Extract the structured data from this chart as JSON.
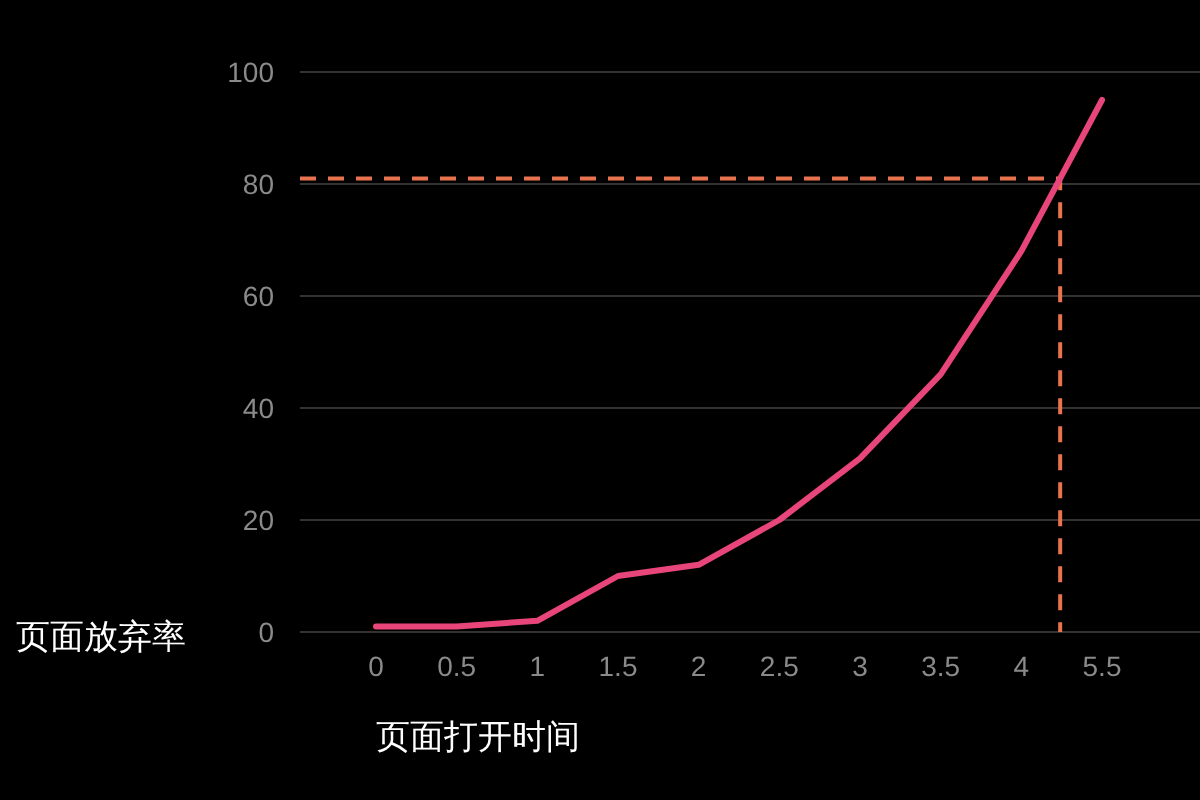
{
  "chart_data": {
    "type": "line",
    "xlabel": "页面打开时间",
    "ylabel": "页面放弃率",
    "categories": [
      "0",
      "0.5",
      "1",
      "1.5",
      "2",
      "2.5",
      "3",
      "3.5",
      "4",
      "5.5"
    ],
    "series": [
      {
        "color": "#e8457a",
        "values": [
          1,
          1,
          2,
          10,
          12,
          20,
          31,
          46,
          68,
          95
        ]
      }
    ],
    "ylim": [
      0,
      100
    ],
    "yticks": [
      0,
      20,
      40,
      60,
      80,
      100
    ],
    "grid": "y",
    "marker": "none",
    "line_style": "solid",
    "ref_lines": [
      {
        "axis": "y",
        "value": 81,
        "color": "#e8744f",
        "line_style": "dashed"
      }
    ]
  }
}
